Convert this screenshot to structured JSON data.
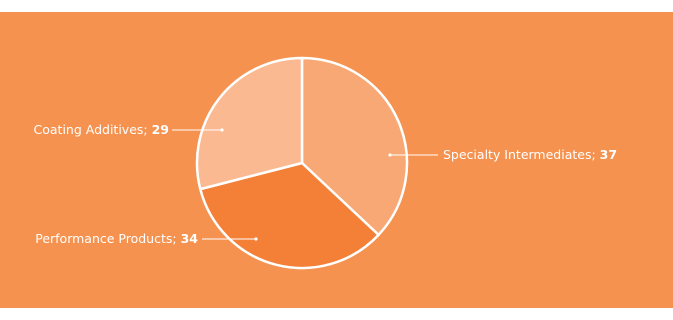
{
  "colors": {
    "background": "#f5924f",
    "slice_colors": [
      "#f8a874",
      "#f47f36",
      "#fab991"
    ],
    "stroke": "#ffffff"
  },
  "chart_data": {
    "type": "pie",
    "title": "",
    "start": "top",
    "direction": "clockwise",
    "slices": [
      {
        "label": "Specialty Intermediates",
        "value": 37,
        "display": "37"
      },
      {
        "label": "Performance Products",
        "value": 34,
        "display": "34"
      },
      {
        "label": "Coating Additives",
        "value": 29,
        "display": "29"
      }
    ]
  }
}
